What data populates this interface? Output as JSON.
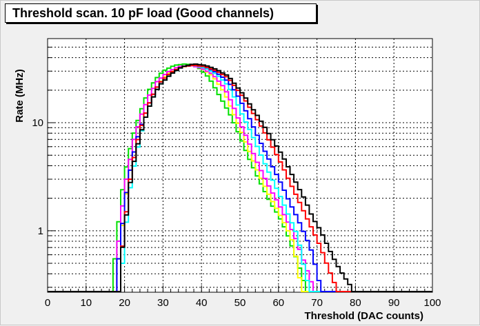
{
  "chart_data": {
    "type": "line",
    "title": "Threshold scan. 10 pF load (Good channels)",
    "xlabel": "Threshold (DAC counts)",
    "ylabel": "Rate (MHz)",
    "xlim": [
      0,
      100
    ],
    "ylim": [
      0.27,
      60
    ],
    "y_scale": "log",
    "grid": true,
    "x_ticks": [
      "0",
      "10",
      "20",
      "30",
      "40",
      "50",
      "60",
      "70",
      "80",
      "90",
      "100"
    ],
    "y_ticks": [
      {
        "value": 1,
        "label": "1"
      },
      {
        "value": 10,
        "label": "10"
      }
    ],
    "series": [
      {
        "color": "#00e000",
        "points": [
          [
            17.5,
            0.55
          ],
          [
            19,
            1.8
          ],
          [
            20,
            3.2
          ],
          [
            22,
            7
          ],
          [
            24,
            12
          ],
          [
            26,
            19
          ],
          [
            28,
            25
          ],
          [
            30,
            30
          ],
          [
            33,
            34
          ],
          [
            36,
            35
          ],
          [
            39,
            33
          ],
          [
            42,
            26
          ],
          [
            45,
            17
          ],
          [
            48,
            11
          ],
          [
            50,
            7.5
          ],
          [
            52,
            5
          ],
          [
            54,
            3.5
          ],
          [
            56,
            2.5
          ],
          [
            58,
            1.8
          ],
          [
            60,
            1.4
          ],
          [
            62,
            1.0
          ],
          [
            64,
            0.65
          ],
          [
            66,
            0.4
          ],
          [
            67,
            0.3
          ]
        ]
      },
      {
        "color": "#ffff00",
        "points": [
          [
            18.5,
            0.55
          ],
          [
            20,
            1.6
          ],
          [
            21,
            3
          ],
          [
            23,
            6.5
          ],
          [
            25,
            11
          ],
          [
            27,
            17
          ],
          [
            29,
            23
          ],
          [
            31,
            28
          ],
          [
            34,
            32
          ],
          [
            37,
            34
          ],
          [
            40,
            32
          ],
          [
            43,
            27
          ],
          [
            46,
            19
          ],
          [
            48,
            13
          ],
          [
            50,
            9
          ],
          [
            52,
            6
          ],
          [
            54,
            4
          ],
          [
            56,
            2.8
          ],
          [
            58,
            2.0
          ],
          [
            60,
            1.5
          ],
          [
            62,
            1.1
          ],
          [
            64,
            0.75
          ],
          [
            65,
            0.45
          ],
          [
            66,
            0.3
          ]
        ]
      },
      {
        "color": "#ff00ff",
        "points": [
          [
            18,
            0.55
          ],
          [
            19.5,
            1.7
          ],
          [
            20.5,
            3
          ],
          [
            22.5,
            7
          ],
          [
            24.5,
            12
          ],
          [
            26.5,
            18
          ],
          [
            28.5,
            24
          ],
          [
            31,
            29
          ],
          [
            34,
            33
          ],
          [
            37,
            34
          ],
          [
            40,
            32
          ],
          [
            43,
            28
          ],
          [
            46,
            21
          ],
          [
            48,
            15
          ],
          [
            50,
            10
          ],
          [
            52,
            7
          ],
          [
            54,
            4.7
          ],
          [
            56,
            3.3
          ],
          [
            58,
            2.4
          ],
          [
            60,
            1.8
          ],
          [
            62,
            1.3
          ],
          [
            64,
            0.95
          ],
          [
            66,
            0.6
          ],
          [
            68,
            0.38
          ],
          [
            69,
            0.3
          ]
        ]
      },
      {
        "color": "#00ffff",
        "points": [
          [
            19.5,
            0.5
          ],
          [
            20.5,
            1.2
          ],
          [
            21.5,
            2.5
          ],
          [
            23,
            5
          ],
          [
            25,
            10
          ],
          [
            27,
            16
          ],
          [
            29,
            22
          ],
          [
            32,
            28
          ],
          [
            35,
            33
          ],
          [
            38,
            34
          ],
          [
            41,
            32
          ],
          [
            44,
            28
          ],
          [
            47,
            22
          ],
          [
            49,
            16
          ],
          [
            51,
            11
          ],
          [
            53,
            8
          ],
          [
            55,
            5.5
          ],
          [
            57,
            3.8
          ],
          [
            59,
            2.7
          ],
          [
            61,
            1.9
          ],
          [
            63,
            1.3
          ],
          [
            65,
            0.9
          ],
          [
            66,
            0.6
          ],
          [
            67,
            0.4
          ],
          [
            68,
            0.3
          ]
        ]
      },
      {
        "color": "#0000ff",
        "points": [
          [
            18.5,
            0.55
          ],
          [
            20,
            1.7
          ],
          [
            21,
            3
          ],
          [
            23,
            6.5
          ],
          [
            25,
            11
          ],
          [
            27,
            17
          ],
          [
            29,
            23
          ],
          [
            32,
            29
          ],
          [
            35,
            33
          ],
          [
            38,
            34
          ],
          [
            41,
            33
          ],
          [
            44,
            29
          ],
          [
            47,
            24
          ],
          [
            49,
            19
          ],
          [
            51,
            14
          ],
          [
            53,
            10
          ],
          [
            55,
            7
          ],
          [
            57,
            5
          ],
          [
            59,
            3.6
          ],
          [
            61,
            2.6
          ],
          [
            63,
            1.8
          ],
          [
            65,
            1.3
          ],
          [
            67,
            0.9
          ],
          [
            69,
            0.6
          ],
          [
            70,
            0.4
          ],
          [
            71,
            0.3
          ]
        ]
      },
      {
        "color": "#ff0000",
        "points": [
          [
            19,
            0.5
          ],
          [
            20.5,
            1.5
          ],
          [
            21.5,
            3
          ],
          [
            23,
            6
          ],
          [
            25,
            11
          ],
          [
            27,
            17
          ],
          [
            29,
            23
          ],
          [
            32,
            29
          ],
          [
            35,
            33
          ],
          [
            38,
            34
          ],
          [
            41,
            33
          ],
          [
            44,
            30
          ],
          [
            47,
            26
          ],
          [
            49,
            21
          ],
          [
            51,
            17
          ],
          [
            53,
            13
          ],
          [
            55,
            10
          ],
          [
            57,
            7.5
          ],
          [
            59,
            5.5
          ],
          [
            61,
            4
          ],
          [
            63,
            2.8
          ],
          [
            65,
            2.0
          ],
          [
            67,
            1.4
          ],
          [
            69,
            1.0
          ],
          [
            71,
            0.7
          ],
          [
            73,
            0.45
          ],
          [
            75,
            0.3
          ]
        ]
      },
      {
        "color": "#000000",
        "points": [
          [
            19,
            0.5
          ],
          [
            20.5,
            1.4
          ],
          [
            21.5,
            2.8
          ],
          [
            23,
            5.5
          ],
          [
            25,
            10
          ],
          [
            27,
            16
          ],
          [
            29,
            22
          ],
          [
            32,
            28
          ],
          [
            35,
            33
          ],
          [
            38,
            35
          ],
          [
            41,
            34
          ],
          [
            44,
            31
          ],
          [
            47,
            27
          ],
          [
            49,
            22
          ],
          [
            51,
            18
          ],
          [
            53,
            14
          ],
          [
            55,
            11
          ],
          [
            57,
            8.5
          ],
          [
            59,
            6.5
          ],
          [
            61,
            5
          ],
          [
            63,
            3.6
          ],
          [
            65,
            2.6
          ],
          [
            67,
            1.9
          ],
          [
            69,
            1.3
          ],
          [
            71,
            1.0
          ],
          [
            73,
            0.7
          ],
          [
            75,
            0.5
          ],
          [
            77,
            0.38
          ],
          [
            79,
            0.3
          ]
        ]
      }
    ]
  }
}
